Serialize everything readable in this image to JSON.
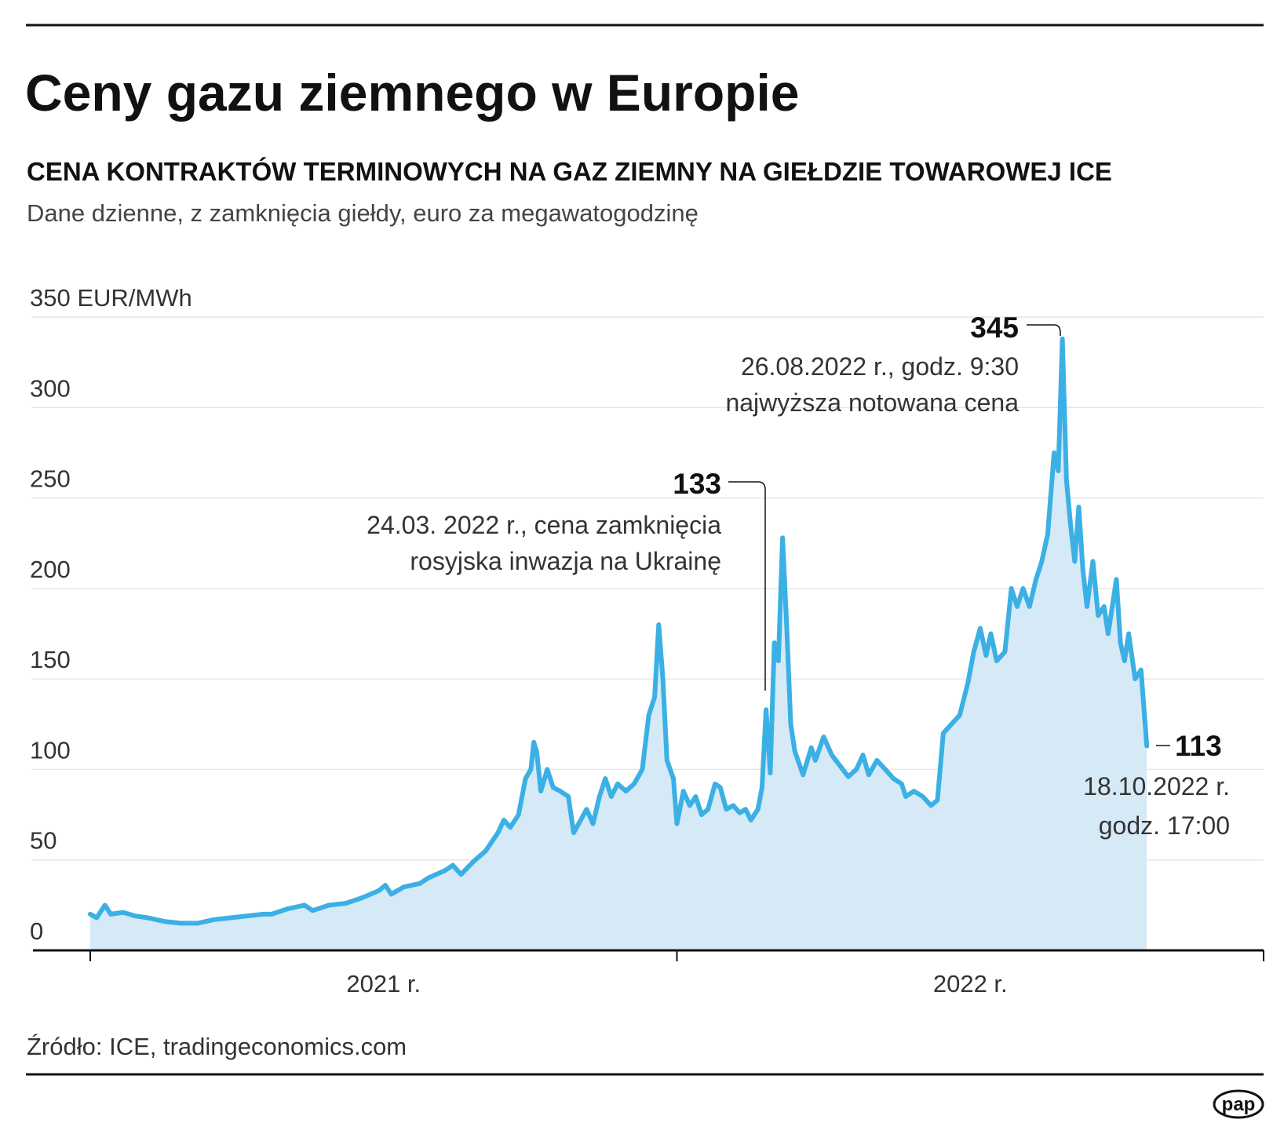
{
  "chart_data": {
    "type": "area",
    "title": "Ceny gazu ziemnego w Europie",
    "subtitle": "CENA KONTRAKTÓW TERMINOWYCH NA GAZ ZIEMNY NA GIEŁDZIE TOWAROWEJ ICE",
    "description": "Dane dzienne, z zamknięcia giełdy, euro za megawatogodzinę",
    "source": "Źródło: ICE, tradingeconomics.com",
    "logo": "pap",
    "line_color": "#3bb0e4",
    "area_color": "#d6e9f7",
    "grid": true,
    "xlim": [
      2021,
      2023
    ],
    "xticks": [
      2021,
      2022,
      2023
    ],
    "xlabels": [
      {
        "value": 2021.5,
        "label": "2021 r."
      },
      {
        "value": 2022.5,
        "label": "2022 r."
      }
    ],
    "ylim": [
      0,
      350
    ],
    "yticks": [
      0,
      50,
      100,
      150,
      200,
      250,
      300,
      {
        "value": 350,
        "label": "350 EUR/MWh"
      }
    ],
    "x": [
      2021.0,
      2021.011,
      2021.025,
      2021.035,
      2021.056,
      2021.077,
      2021.098,
      2021.126,
      2021.154,
      2021.183,
      2021.211,
      2021.239,
      2021.267,
      2021.295,
      2021.309,
      2021.337,
      2021.365,
      2021.379,
      2021.407,
      2021.435,
      2021.463,
      2021.492,
      2021.503,
      2021.513,
      2021.534,
      2021.562,
      2021.576,
      2021.604,
      2021.618,
      2021.632,
      2021.653,
      2021.674,
      2021.695,
      2021.705,
      2021.716,
      2021.73,
      2021.742,
      2021.751,
      2021.756,
      2021.761,
      2021.768,
      2021.779,
      2021.789,
      2021.801,
      2021.815,
      2021.824,
      2021.836,
      2021.846,
      2021.857,
      2021.868,
      2021.878,
      2021.888,
      2021.899,
      2021.913,
      2021.927,
      2021.941,
      2021.952,
      2021.962,
      2021.969,
      2021.976,
      2021.983,
      2021.994,
      2022.0,
      2022.011,
      2022.022,
      2022.032,
      2022.042,
      2022.053,
      2022.065,
      2022.074,
      2022.084,
      2022.096,
      2022.107,
      2022.117,
      2022.126,
      2022.138,
      2022.145,
      2022.152,
      2022.159,
      2022.166,
      2022.173,
      2022.18,
      2022.187,
      2022.194,
      2022.201,
      2022.215,
      2022.229,
      2022.236,
      2022.25,
      2022.264,
      2022.278,
      2022.292,
      2022.306,
      2022.317,
      2022.327,
      2022.341,
      2022.355,
      2022.369,
      2022.383,
      2022.39,
      2022.404,
      2022.419,
      2022.433,
      2022.444,
      2022.454,
      2022.468,
      2022.482,
      2022.496,
      2022.506,
      2022.517,
      2022.527,
      2022.535,
      2022.545,
      2022.559,
      2022.57,
      2022.58,
      2022.59,
      2022.601,
      2022.612,
      2022.622,
      2022.632,
      2022.643,
      2022.65,
      2022.657,
      2022.664,
      2022.671,
      2022.678,
      2022.685,
      2022.692,
      2022.699,
      2022.709,
      2022.718,
      2022.728,
      2022.735,
      2022.749,
      2022.756,
      2022.763,
      2022.77,
      2022.781,
      2022.791,
      2022.801
    ],
    "values": [
      20,
      18,
      25,
      20,
      21,
      19,
      18,
      16,
      15,
      15,
      17,
      18,
      19,
      20,
      20,
      23,
      25,
      22,
      25,
      26,
      29,
      33,
      36,
      31,
      35,
      37,
      40,
      44,
      47,
      42,
      49,
      55,
      65,
      72,
      68,
      75,
      95,
      100,
      115,
      110,
      88,
      100,
      90,
      88,
      85,
      65,
      72,
      78,
      70,
      85,
      95,
      85,
      92,
      88,
      92,
      100,
      130,
      140,
      180,
      150,
      105,
      95,
      70,
      88,
      80,
      85,
      75,
      78,
      92,
      90,
      78,
      80,
      76,
      78,
      72,
      78,
      90,
      133,
      98,
      170,
      160,
      228,
      180,
      125,
      110,
      97,
      112,
      105,
      118,
      108,
      102,
      96,
      100,
      108,
      97,
      105,
      100,
      95,
      92,
      85,
      88,
      85,
      80,
      83,
      120,
      125,
      130,
      148,
      165,
      178,
      163,
      175,
      160,
      165,
      200,
      190,
      200,
      190,
      205,
      215,
      230,
      275,
      265,
      338,
      260,
      235,
      215,
      245,
      210,
      190,
      215,
      185,
      190,
      175,
      205,
      170,
      160,
      175,
      150,
      155,
      113
    ],
    "annotations": [
      {
        "value": 133,
        "lines": [
          "24.03. 2022 r., cena zamknięcia",
          "rosyjska inwazja na Ukrainę"
        ]
      },
      {
        "value": 345,
        "lines": [
          "26.08.2022 r., godz. 9:30",
          "najwyższa notowana cena"
        ]
      },
      {
        "value": 113,
        "lines": [
          "18.10.2022 r.",
          "godz. 17:00"
        ]
      }
    ]
  }
}
